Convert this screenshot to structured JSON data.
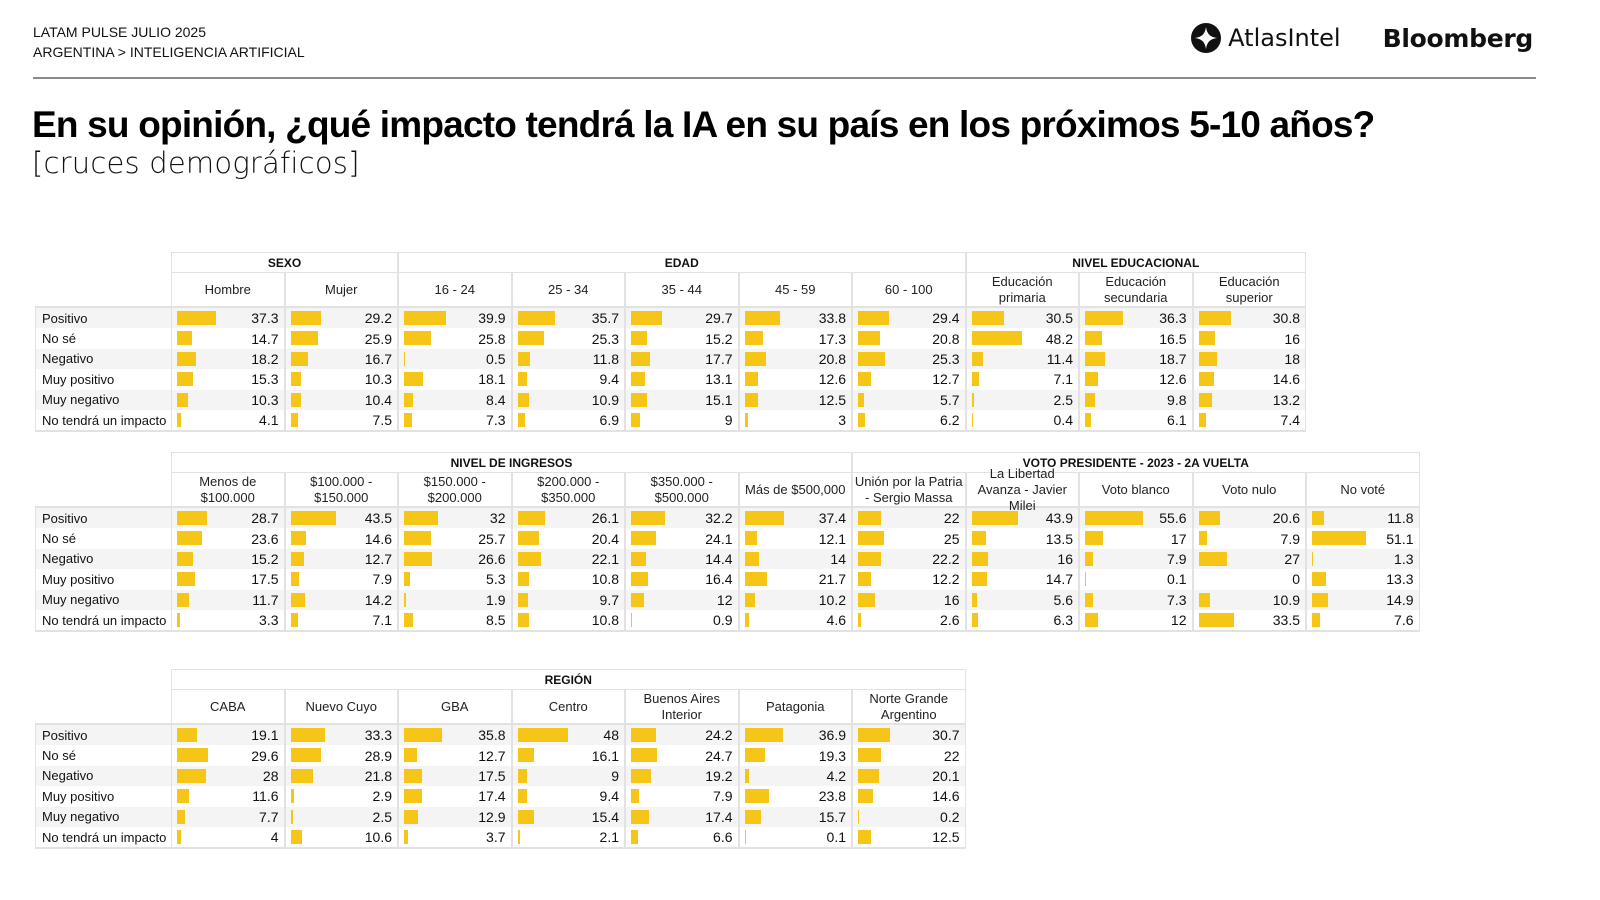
{
  "header": {
    "kicker_line1": "LATAM PULSE JULIO 2025",
    "kicker_line2": "ARGENTINA > INTELIGENCIA ARTIFICIAL",
    "logo_atlas": "AtlasIntel",
    "logo_bloomberg": "Bloomberg"
  },
  "title": "En su opinión, ¿qué impacto tendrá la IA en su país en los próximos 5-10 años?",
  "subtitle": "[cruces demográficos]",
  "colors": {
    "bar": "#f5c518",
    "row_alt": "#f4f4f4",
    "border": "#e2e2e2"
  },
  "chart_data": [
    {
      "type": "table",
      "row_labels": [
        "Positivo",
        "No sé",
        "Negativo",
        "Muy positivo",
        "Muy negativo",
        "No tendrá un impacto"
      ],
      "groups": [
        {
          "name": "SEXO",
          "columns": [
            {
              "label": "Hombre",
              "values": [
                37.3,
                14.7,
                18.2,
                15.3,
                10.3,
                4.1
              ]
            },
            {
              "label": "Mujer",
              "values": [
                29.2,
                25.9,
                16.7,
                10.3,
                10.4,
                7.5
              ]
            }
          ]
        },
        {
          "name": "EDAD",
          "columns": [
            {
              "label": "16 - 24",
              "values": [
                39.9,
                25.8,
                0.5,
                18.1,
                8.4,
                7.3
              ]
            },
            {
              "label": "25 - 34",
              "values": [
                35.7,
                25.3,
                11.8,
                9.4,
                10.9,
                6.9
              ]
            },
            {
              "label": "35 - 44",
              "values": [
                29.7,
                15.2,
                17.7,
                13.1,
                15.1,
                9
              ]
            },
            {
              "label": "45 - 59",
              "values": [
                33.8,
                17.3,
                20.8,
                12.6,
                12.5,
                3
              ]
            },
            {
              "label": "60 - 100",
              "values": [
                29.4,
                20.8,
                25.3,
                12.7,
                5.7,
                6.2
              ]
            }
          ]
        },
        {
          "name": "NIVEL EDUCACIONAL",
          "columns": [
            {
              "label": "Educación primaria",
              "values": [
                30.5,
                48.2,
                11.4,
                7.1,
                2.5,
                0.4
              ]
            },
            {
              "label": "Educación secundaria",
              "values": [
                36.3,
                16.5,
                18.7,
                12.6,
                9.8,
                6.1
              ]
            },
            {
              "label": "Educación superior",
              "values": [
                30.8,
                16,
                18,
                14.6,
                13.2,
                7.4
              ]
            }
          ]
        }
      ]
    },
    {
      "type": "table",
      "row_labels": [
        "Positivo",
        "No sé",
        "Negativo",
        "Muy positivo",
        "Muy negativo",
        "No tendrá un impacto"
      ],
      "groups": [
        {
          "name": "NIVEL DE INGRESOS",
          "columns": [
            {
              "label": "Menos de $100.000",
              "values": [
                28.7,
                23.6,
                15.2,
                17.5,
                11.7,
                3.3
              ]
            },
            {
              "label": "$100.000 - $150.000",
              "values": [
                43.5,
                14.6,
                12.7,
                7.9,
                14.2,
                7.1
              ]
            },
            {
              "label": "$150.000 - $200.000",
              "values": [
                32,
                25.7,
                26.6,
                5.3,
                1.9,
                8.5
              ]
            },
            {
              "label": "$200.000 - $350.000",
              "values": [
                26.1,
                20.4,
                22.1,
                10.8,
                9.7,
                10.8
              ]
            },
            {
              "label": "$350.000 - $500.000",
              "values": [
                32.2,
                24.1,
                14.4,
                16.4,
                12,
                0.9
              ]
            },
            {
              "label": "Más de $500,000",
              "values": [
                37.4,
                12.1,
                14,
                21.7,
                10.2,
                4.6
              ]
            }
          ]
        },
        {
          "name": "VOTO PRESIDENTE - 2023 - 2A VUELTA",
          "columns": [
            {
              "label": "Unión por la Patria - Sergio Massa",
              "values": [
                22,
                25,
                22.2,
                12.2,
                16,
                2.6
              ]
            },
            {
              "label": "La Libertad Avanza - Javier Milei",
              "values": [
                43.9,
                13.5,
                16,
                14.7,
                5.6,
                6.3
              ]
            },
            {
              "label": "Voto blanco",
              "values": [
                55.6,
                17,
                7.9,
                0.1,
                7.3,
                12
              ]
            },
            {
              "label": "Voto nulo",
              "values": [
                20.6,
                7.9,
                27,
                0,
                10.9,
                33.5
              ]
            },
            {
              "label": "No voté",
              "values": [
                11.8,
                51.1,
                1.3,
                13.3,
                14.9,
                7.6
              ]
            }
          ]
        }
      ]
    },
    {
      "type": "table",
      "row_labels": [
        "Positivo",
        "No sé",
        "Negativo",
        "Muy positivo",
        "Muy negativo",
        "No tendrá un impacto"
      ],
      "groups": [
        {
          "name": "REGIÓN",
          "columns": [
            {
              "label": "CABA",
              "values": [
                19.1,
                29.6,
                28,
                11.6,
                7.7,
                4
              ]
            },
            {
              "label": "Nuevo Cuyo",
              "values": [
                33.3,
                28.9,
                21.8,
                2.9,
                2.5,
                10.6
              ]
            },
            {
              "label": "GBA",
              "values": [
                35.8,
                12.7,
                17.5,
                17.4,
                12.9,
                3.7
              ]
            },
            {
              "label": "Centro",
              "values": [
                48,
                16.1,
                9,
                9.4,
                15.4,
                2.1
              ]
            },
            {
              "label": "Buenos Aires Interior",
              "values": [
                24.2,
                24.7,
                19.2,
                7.9,
                17.4,
                6.6
              ]
            },
            {
              "label": "Patagonia",
              "values": [
                36.9,
                19.3,
                4.2,
                23.8,
                15.7,
                0.1
              ]
            },
            {
              "label": "Norte Grande Argentino",
              "values": [
                30.7,
                22,
                20.1,
                14.6,
                0.2,
                12.5
              ]
            }
          ]
        }
      ]
    }
  ]
}
